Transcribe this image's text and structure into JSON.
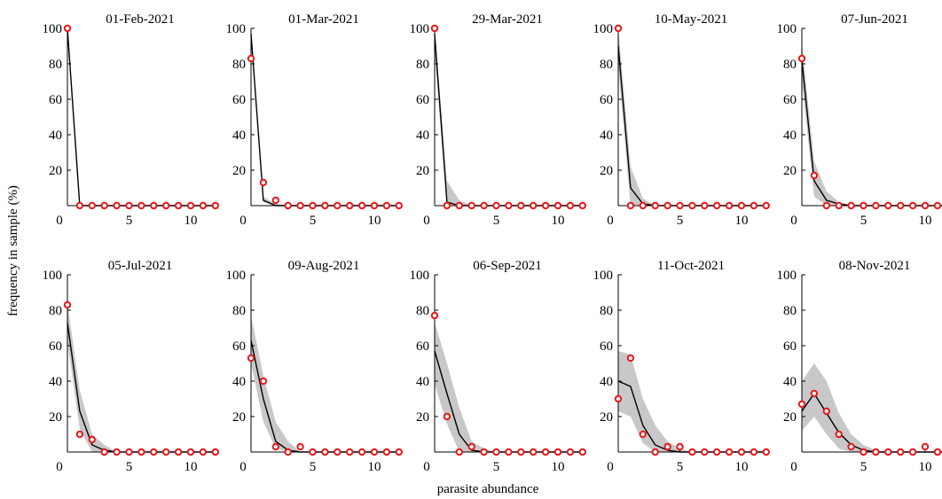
{
  "figure": {
    "ylabel": "frequency in sample (%)",
    "xlabel": "parasite abundance"
  },
  "colors": {
    "observed": "#e8191c",
    "model_line": "#000000",
    "band": "#c8c8c8"
  },
  "chart_data": [
    {
      "type": "line",
      "title": "01-Feb-2021",
      "x": [
        0,
        1,
        2,
        3,
        4,
        5,
        6,
        7,
        8,
        9,
        10,
        11,
        12
      ],
      "ylim": [
        0,
        100
      ],
      "xlim": [
        0,
        12
      ],
      "xticks": [
        0,
        5,
        10
      ],
      "yticks": [
        20,
        40,
        60,
        80,
        100
      ],
      "model": [
        100,
        0,
        0,
        0,
        0,
        0,
        0,
        0,
        0,
        0,
        0,
        0,
        0
      ],
      "band_low": [
        100,
        0,
        0,
        0,
        0,
        0,
        0,
        0,
        0,
        0,
        0,
        0,
        0
      ],
      "band_high": [
        100,
        0,
        0,
        0,
        0,
        0,
        0,
        0,
        0,
        0,
        0,
        0,
        0
      ],
      "observed": [
        100,
        0,
        0,
        0,
        0,
        0,
        0,
        0,
        0,
        0,
        0,
        0,
        0
      ]
    },
    {
      "type": "line",
      "title": "01-Mar-2021",
      "x": [
        0,
        1,
        2,
        3,
        4,
        5,
        6,
        7,
        8,
        9,
        10,
        11,
        12
      ],
      "ylim": [
        0,
        100
      ],
      "xlim": [
        0,
        12
      ],
      "xticks": [
        0,
        5,
        10
      ],
      "yticks": [
        20,
        40,
        60,
        80,
        100
      ],
      "model": [
        97,
        3,
        0,
        0,
        0,
        0,
        0,
        0,
        0,
        0,
        0,
        0,
        0
      ],
      "band_low": [
        95,
        2,
        0,
        0,
        0,
        0,
        0,
        0,
        0,
        0,
        0,
        0,
        0
      ],
      "band_high": [
        98,
        5,
        1,
        0,
        0,
        0,
        0,
        0,
        0,
        0,
        0,
        0,
        0
      ],
      "observed": [
        83,
        13,
        3,
        0,
        0,
        0,
        0,
        0,
        0,
        0,
        0,
        0,
        0
      ]
    },
    {
      "type": "line",
      "title": "29-Mar-2021",
      "x": [
        0,
        1,
        2,
        3,
        4,
        5,
        6,
        7,
        8,
        9,
        10,
        11,
        12
      ],
      "ylim": [
        0,
        100
      ],
      "xlim": [
        0,
        12
      ],
      "xticks": [
        0,
        5,
        10
      ],
      "yticks": [
        20,
        40,
        60,
        80,
        100
      ],
      "model": [
        97,
        2,
        0,
        0,
        0,
        0,
        0,
        0,
        0,
        0,
        0,
        0,
        0
      ],
      "band_low": [
        85,
        0,
        0,
        0,
        0,
        0,
        0,
        0,
        0,
        0,
        0,
        0,
        0
      ],
      "band_high": [
        100,
        14,
        3,
        0,
        0,
        0,
        0,
        0,
        0,
        0,
        0,
        0,
        0
      ],
      "observed": [
        100,
        0,
        0,
        0,
        0,
        0,
        0,
        0,
        0,
        0,
        0,
        0,
        0
      ]
    },
    {
      "type": "line",
      "title": "10-May-2021",
      "x": [
        0,
        1,
        2,
        3,
        4,
        5,
        6,
        7,
        8,
        9,
        10,
        11,
        12
      ],
      "ylim": [
        0,
        100
      ],
      "xlim": [
        0,
        12
      ],
      "xticks": [
        0,
        5,
        10
      ],
      "yticks": [
        20,
        40,
        60,
        80,
        100
      ],
      "model": [
        90,
        10,
        1,
        0,
        0,
        0,
        0,
        0,
        0,
        0,
        0,
        0,
        0
      ],
      "band_low": [
        78,
        0,
        0,
        0,
        0,
        0,
        0,
        0,
        0,
        0,
        0,
        0,
        0
      ],
      "band_high": [
        100,
        22,
        4,
        0,
        0,
        0,
        0,
        0,
        0,
        0,
        0,
        0,
        0
      ],
      "observed": [
        100,
        0,
        0,
        0,
        0,
        0,
        0,
        0,
        0,
        0,
        0,
        0,
        0
      ]
    },
    {
      "type": "line",
      "title": "07-Jun-2021",
      "x": [
        0,
        1,
        2,
        3,
        4,
        5,
        6,
        7,
        8,
        9,
        10,
        11,
        12
      ],
      "ylim": [
        0,
        100
      ],
      "xlim": [
        0,
        12
      ],
      "xticks": [
        0,
        5,
        10
      ],
      "yticks": [
        20,
        40,
        60,
        80,
        100
      ],
      "model": [
        82,
        14,
        3,
        1,
        0,
        0,
        0,
        0,
        0,
        0,
        0,
        0,
        0
      ],
      "band_low": [
        70,
        5,
        0,
        0,
        0,
        0,
        0,
        0,
        0,
        0,
        0,
        0,
        0
      ],
      "band_high": [
        92,
        25,
        8,
        2,
        0,
        0,
        0,
        0,
        0,
        0,
        0,
        0,
        0
      ],
      "observed": [
        83,
        17,
        0,
        0,
        0,
        0,
        0,
        0,
        0,
        0,
        0,
        0,
        0
      ]
    },
    {
      "type": "line",
      "title": "05-Jul-2021",
      "x": [
        0,
        1,
        2,
        3,
        4,
        5,
        6,
        7,
        8,
        9,
        10,
        11,
        12
      ],
      "ylim": [
        0,
        100
      ],
      "xlim": [
        0,
        12
      ],
      "xticks": [
        0,
        5,
        10
      ],
      "yticks": [
        20,
        40,
        60,
        80,
        100
      ],
      "model": [
        73,
        23,
        4,
        1,
        0,
        0,
        0,
        0,
        0,
        0,
        0,
        0,
        0
      ],
      "band_low": [
        62,
        13,
        0,
        0,
        0,
        0,
        0,
        0,
        0,
        0,
        0,
        0,
        0
      ],
      "band_high": [
        84,
        35,
        10,
        4,
        0,
        0,
        0,
        0,
        0,
        0,
        0,
        0,
        0
      ],
      "observed": [
        83,
        10,
        7,
        0,
        0,
        0,
        0,
        0,
        0,
        0,
        0,
        0,
        0
      ]
    },
    {
      "type": "line",
      "title": "09-Aug-2021",
      "x": [
        0,
        1,
        2,
        3,
        4,
        5,
        6,
        7,
        8,
        9,
        10,
        11,
        12
      ],
      "ylim": [
        0,
        100
      ],
      "xlim": [
        0,
        12
      ],
      "xticks": [
        0,
        5,
        10
      ],
      "yticks": [
        20,
        40,
        60,
        80,
        100
      ],
      "model": [
        63,
        30,
        6,
        1,
        0,
        0,
        0,
        0,
        0,
        0,
        0,
        0,
        0
      ],
      "band_low": [
        50,
        17,
        2,
        0,
        0,
        0,
        0,
        0,
        0,
        0,
        0,
        0,
        0
      ],
      "band_high": [
        77,
        43,
        17,
        6,
        0,
        0,
        0,
        0,
        0,
        0,
        0,
        0,
        0
      ],
      "observed": [
        53,
        40,
        3,
        0,
        3,
        0,
        0,
        0,
        0,
        0,
        0,
        0,
        0
      ]
    },
    {
      "type": "line",
      "title": "06-Sep-2021",
      "x": [
        0,
        1,
        2,
        3,
        4,
        5,
        6,
        7,
        8,
        9,
        10,
        11,
        12
      ],
      "ylim": [
        0,
        100
      ],
      "xlim": [
        0,
        12
      ],
      "xticks": [
        0,
        5,
        10
      ],
      "yticks": [
        20,
        40,
        60,
        80,
        100
      ],
      "model": [
        57,
        33,
        10,
        1,
        0,
        0,
        0,
        0,
        0,
        0,
        0,
        0,
        0
      ],
      "band_low": [
        38,
        16,
        0,
        0,
        0,
        0,
        0,
        0,
        0,
        0,
        0,
        0,
        0
      ],
      "band_high": [
        73,
        50,
        25,
        6,
        2,
        0,
        0,
        0,
        0,
        0,
        0,
        0,
        0
      ],
      "observed": [
        77,
        20,
        0,
        3,
        0,
        0,
        0,
        0,
        0,
        0,
        0,
        0,
        0
      ]
    },
    {
      "type": "line",
      "title": "11-Oct-2021",
      "x": [
        0,
        1,
        2,
        3,
        4,
        5,
        6,
        7,
        8,
        9,
        10,
        11,
        12
      ],
      "ylim": [
        0,
        100
      ],
      "xlim": [
        0,
        12
      ],
      "xticks": [
        0,
        5,
        10
      ],
      "yticks": [
        20,
        40,
        60,
        80,
        100
      ],
      "model": [
        40,
        37,
        15,
        4,
        1,
        0,
        0,
        0,
        0,
        0,
        0,
        0,
        0
      ],
      "band_low": [
        23,
        20,
        5,
        0,
        0,
        0,
        0,
        0,
        0,
        0,
        0,
        0,
        0
      ],
      "band_high": [
        57,
        55,
        30,
        15,
        6,
        2,
        0,
        0,
        0,
        0,
        0,
        0,
        0
      ],
      "observed": [
        30,
        53,
        10,
        0,
        3,
        3,
        0,
        0,
        0,
        0,
        0,
        0,
        0
      ]
    },
    {
      "type": "line",
      "title": "08-Nov-2021",
      "x": [
        0,
        1,
        2,
        3,
        4,
        5,
        6,
        7,
        8,
        9,
        10,
        11,
        12
      ],
      "ylim": [
        0,
        100
      ],
      "xlim": [
        0,
        12
      ],
      "xticks": [
        0,
        5,
        10
      ],
      "yticks": [
        20,
        40,
        60,
        80,
        100
      ],
      "model": [
        23,
        33,
        22,
        11,
        4,
        1,
        0,
        0,
        0,
        0,
        0,
        0,
        0
      ],
      "band_low": [
        12,
        20,
        10,
        2,
        0,
        0,
        0,
        0,
        0,
        0,
        0,
        0,
        0
      ],
      "band_high": [
        40,
        50,
        40,
        22,
        10,
        4,
        1,
        0,
        0,
        0,
        0,
        0,
        0
      ],
      "observed": [
        27,
        33,
        23,
        10,
        3,
        0,
        0,
        0,
        0,
        0,
        3,
        0,
        0
      ]
    }
  ]
}
